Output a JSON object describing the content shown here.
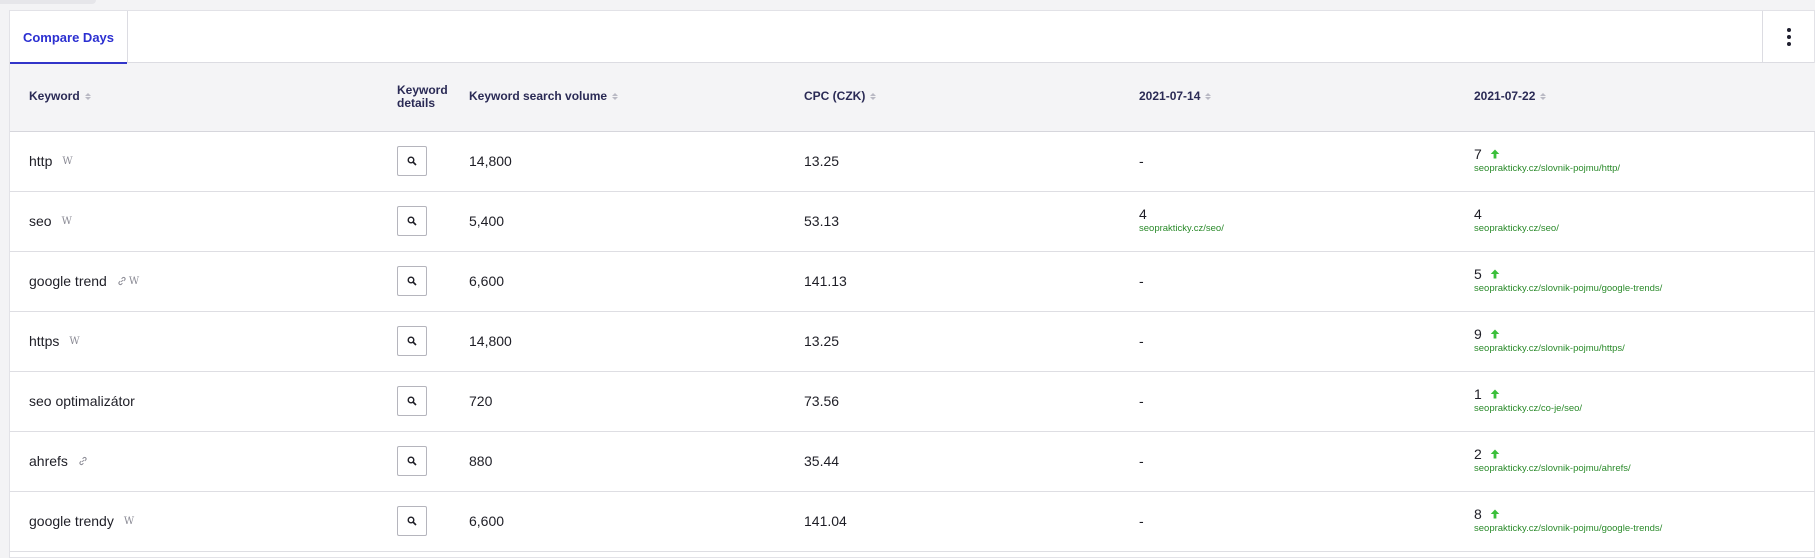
{
  "tabs": [
    {
      "label": "Compare Days",
      "active": true
    }
  ],
  "menu": {
    "icon": "kebab-menu-icon"
  },
  "colors": {
    "accent": "#3235c9",
    "positive": "#3bbf3b",
    "url": "#2a8a2a"
  },
  "table": {
    "headers": {
      "keyword": "Keyword",
      "details_line1": "Keyword",
      "details_line2": "details",
      "volume": "Keyword search volume",
      "cpc": "CPC (CZK)",
      "day1": "2021-07-14",
      "day2": "2021-07-22"
    },
    "rows": [
      {
        "keyword": "http",
        "wiki": true,
        "link": false,
        "volume": "14,800",
        "cpc": "13.25",
        "day1": {
          "pos": "-",
          "url": ""
        },
        "day2": {
          "pos": "7",
          "url": "seoprakticky.cz/slovnik-pojmu/http/",
          "trend": "up"
        }
      },
      {
        "keyword": "seo",
        "wiki": true,
        "link": false,
        "volume": "5,400",
        "cpc": "53.13",
        "day1": {
          "pos": "4",
          "url": "seoprakticky.cz/seo/"
        },
        "day2": {
          "pos": "4",
          "url": "seoprakticky.cz/seo/",
          "trend": "none"
        }
      },
      {
        "keyword": "google trend",
        "wiki": true,
        "link": true,
        "volume": "6,600",
        "cpc": "141.13",
        "day1": {
          "pos": "-",
          "url": ""
        },
        "day2": {
          "pos": "5",
          "url": "seoprakticky.cz/slovnik-pojmu/google-trends/",
          "trend": "up"
        }
      },
      {
        "keyword": "https",
        "wiki": true,
        "link": false,
        "volume": "14,800",
        "cpc": "13.25",
        "day1": {
          "pos": "-",
          "url": ""
        },
        "day2": {
          "pos": "9",
          "url": "seoprakticky.cz/slovnik-pojmu/https/",
          "trend": "up"
        }
      },
      {
        "keyword": "seo optimalizátor",
        "wiki": false,
        "link": false,
        "volume": "720",
        "cpc": "73.56",
        "day1": {
          "pos": "-",
          "url": ""
        },
        "day2": {
          "pos": "1",
          "url": "seoprakticky.cz/co-je/seo/",
          "trend": "up"
        }
      },
      {
        "keyword": "ahrefs",
        "wiki": false,
        "link": true,
        "volume": "880",
        "cpc": "35.44",
        "day1": {
          "pos": "-",
          "url": ""
        },
        "day2": {
          "pos": "2",
          "url": "seoprakticky.cz/slovnik-pojmu/ahrefs/",
          "trend": "up"
        }
      },
      {
        "keyword": "google trendy",
        "wiki": true,
        "link": false,
        "volume": "6,600",
        "cpc": "141.04",
        "day1": {
          "pos": "-",
          "url": ""
        },
        "day2": {
          "pos": "8",
          "url": "seoprakticky.cz/slovnik-pojmu/google-trends/",
          "trend": "up"
        }
      }
    ]
  }
}
